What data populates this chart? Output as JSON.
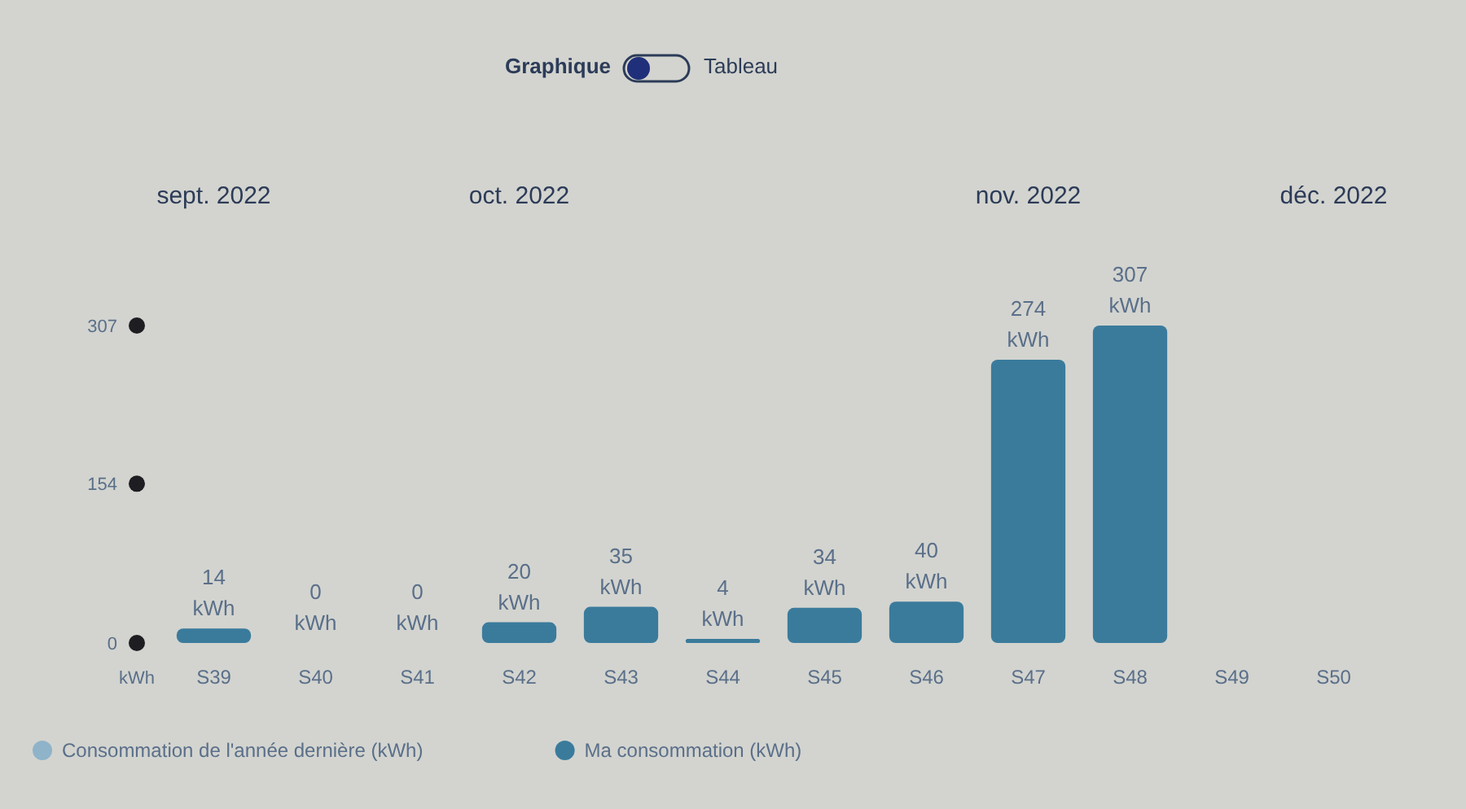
{
  "chart_data": {
    "type": "bar",
    "categories": [
      "S39",
      "S40",
      "S41",
      "S42",
      "S43",
      "S44",
      "S45",
      "S46",
      "S47",
      "S48",
      "S49",
      "S50"
    ],
    "series": [
      {
        "name": "Consommation de l'année dernière (kWh)",
        "color": "#8fb3c9",
        "values": [
          null,
          null,
          null,
          null,
          null,
          null,
          null,
          null,
          null,
          null,
          null,
          null
        ]
      },
      {
        "name": "Ma consommation (kWh)",
        "color": "#3a7b9c",
        "values": [
          14,
          0,
          0,
          20,
          35,
          4,
          34,
          40,
          274,
          307,
          null,
          null
        ],
        "value_labels": [
          "14 kWh",
          "0 kWh",
          "0 kWh",
          "20 kWh",
          "35 kWh",
          "4 kWh",
          "34 kWh",
          "40 kWh",
          "274 kWh",
          "307 kWh",
          null,
          null
        ]
      }
    ],
    "ylabel": "kWh",
    "ylim": [
      0,
      307
    ],
    "yticks": [
      0,
      154,
      307
    ],
    "legend": "bottom",
    "annotations": [
      "Graphique",
      "Tableau",
      "sept. 2022",
      "oct. 2022",
      "nov. 2022",
      "déc. 2022"
    ]
  }
}
